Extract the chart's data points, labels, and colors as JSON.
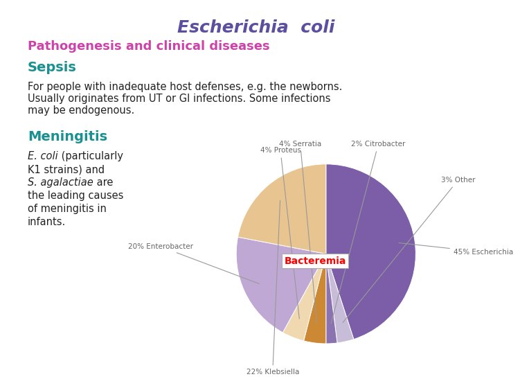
{
  "title": "Escherichia  coli",
  "subtitle": "Pathogenesis and clinical diseases",
  "section1": "Sepsis",
  "body1_line1": "For people with inadequate host defenses, e.g. the newborns.",
  "body1_line2": "Usually originates from UT or GI infections. Some infections",
  "body1_line3": "may be endogenous.",
  "section2": "Meningitis",
  "bacteremia_label": "Bacteremia",
  "bg_color": "#FFFFFF",
  "title_color": "#5B4FA0",
  "subtitle_color": "#CC44AA",
  "section_color": "#1A9090",
  "body_color": "#222222",
  "label_color": "#666666",
  "pie_sizes": [
    45,
    3,
    2,
    4,
    4,
    20,
    22
  ],
  "pie_colors": [
    "#7B5EA7",
    "#C8BDD8",
    "#8B72B0",
    "#CC8833",
    "#F0D8B0",
    "#C0A8D4",
    "#E8C490"
  ],
  "pie_labels": [
    "45% Escherichia",
    "3% Other",
    "2% Citrobacter",
    "4% Serratia",
    "4% Proteus",
    "20% Enterobacter",
    "22% Klebsiella"
  ],
  "pie_startangle": 90,
  "title_fontsize": 18,
  "subtitle_fontsize": 13,
  "section_fontsize": 14,
  "body_fontsize": 10.5,
  "label_fontsize": 7.5
}
